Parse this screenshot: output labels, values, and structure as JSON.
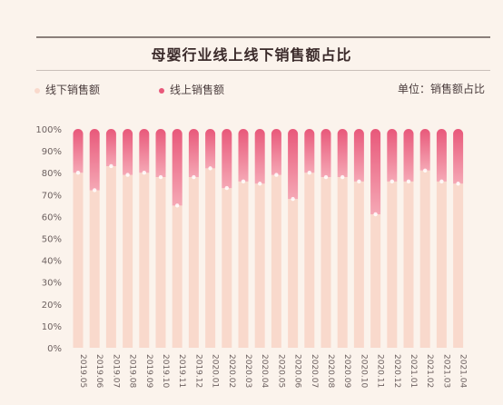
{
  "header": {
    "title": "母婴行业线上线下销售额占比",
    "unit": "单位：销售额占比"
  },
  "colors": {
    "offline": "#f9d9cc",
    "online_top": "#e8587a",
    "online_bottom": "#f5a8b5"
  },
  "chart_data": {
    "type": "bar",
    "stacked": true,
    "title": "母婴行业线上线下销售额占比",
    "categories": [
      "2019.05",
      "2019.06",
      "2019.07",
      "2019.08",
      "2019.09",
      "2019.10",
      "2019.11",
      "2019.12",
      "2020.01",
      "2020.02",
      "2020.03",
      "2020.04",
      "2020.05",
      "2020.06",
      "2020.07",
      "2020.08",
      "2020.09",
      "2020.10",
      "2020.11",
      "2020.12",
      "2021.01",
      "2021.02",
      "2021.03",
      "2021.04"
    ],
    "series": [
      {
        "name": "线下销售额",
        "values": [
          80,
          72,
          83,
          79,
          80,
          78,
          65,
          78,
          82,
          73,
          76,
          75,
          79,
          68,
          80,
          78,
          78,
          76,
          61,
          76,
          76,
          81,
          76,
          75
        ]
      },
      {
        "name": "线上销售额",
        "values": [
          20,
          28,
          17,
          21,
          20,
          22,
          35,
          22,
          18,
          27,
          24,
          25,
          21,
          32,
          20,
          22,
          22,
          24,
          39,
          24,
          24,
          19,
          24,
          25
        ]
      }
    ],
    "yticks": [
      "0%",
      "10%",
      "20%",
      "30%",
      "40%",
      "50%",
      "60%",
      "70%",
      "80%",
      "90%",
      "100%"
    ],
    "ylim": [
      0,
      100
    ],
    "legend": "top-left"
  }
}
